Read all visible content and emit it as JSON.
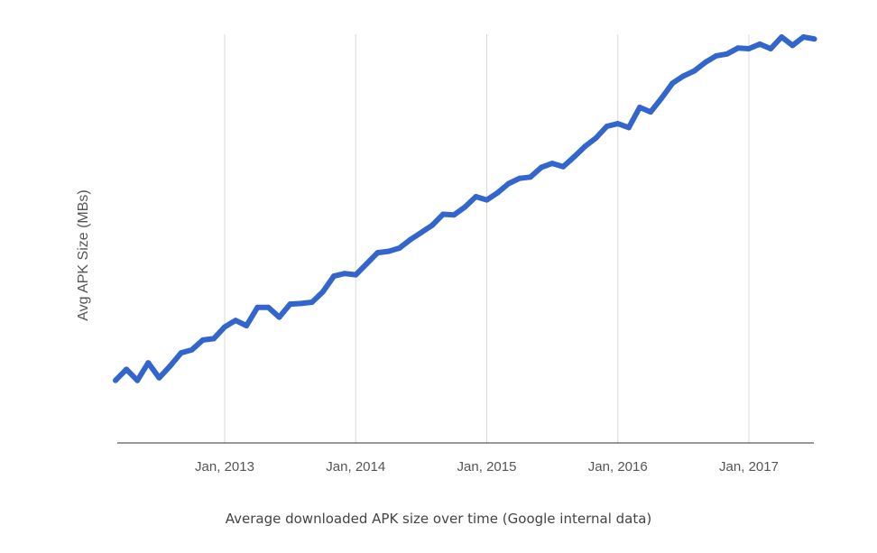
{
  "caption": "Average downloaded APK size over time (Google internal data)",
  "chart_data": {
    "type": "line",
    "title": "",
    "xlabel": "",
    "ylabel": "Avg APK Size (MBs)",
    "x_ticks": [
      "Jan, 2013",
      "Jan, 2014",
      "Jan, 2015",
      "Jan, 2016",
      "Jan, 2017"
    ],
    "grid": {
      "vertical": true,
      "horizontal": false
    },
    "y_tick_labels_shown": false,
    "line_color": "#3366cc",
    "series": [
      {
        "x": [
          "2012-03",
          "2012-04",
          "2012-05",
          "2012-06",
          "2012-07",
          "2012-08",
          "2012-09",
          "2012-10",
          "2012-11",
          "2012-12",
          "2013-01",
          "2013-02",
          "2013-03",
          "2013-04",
          "2013-05",
          "2013-06",
          "2013-07",
          "2013-08",
          "2013-09",
          "2013-10",
          "2013-11",
          "2013-12",
          "2014-01",
          "2014-02",
          "2014-03",
          "2014-04",
          "2014-05",
          "2014-06",
          "2014-07",
          "2014-08",
          "2014-09",
          "2014-10",
          "2014-11",
          "2014-12",
          "2015-01",
          "2015-02",
          "2015-03",
          "2015-04",
          "2015-05",
          "2015-06",
          "2015-07",
          "2015-08",
          "2015-09",
          "2015-10",
          "2015-11",
          "2015-12",
          "2016-01",
          "2016-02",
          "2016-03",
          "2016-04",
          "2016-05",
          "2016-06",
          "2016-07",
          "2016-08",
          "2016-09",
          "2016-10",
          "2016-11",
          "2016-12",
          "2017-01",
          "2017-02",
          "2017-03",
          "2017-04",
          "2017-05",
          "2017-06",
          "2017-07"
        ],
        "values": [
          0.8,
          2.5,
          0.8,
          3.5,
          1.2,
          3.0,
          5.0,
          5.5,
          7.0,
          7.2,
          9.0,
          10.0,
          9.2,
          12.0,
          12.0,
          10.5,
          12.5,
          12.6,
          12.8,
          14.4,
          16.8,
          17.2,
          17.0,
          18.7,
          20.4,
          20.6,
          21.1,
          22.4,
          23.5,
          24.6,
          26.3,
          26.2,
          27.4,
          29.0,
          28.5,
          29.6,
          31.0,
          31.8,
          32.0,
          33.5,
          34.1,
          33.6,
          35.1,
          36.7,
          38.0,
          39.8,
          40.2,
          39.6,
          42.7,
          42.0,
          44.1,
          46.4,
          47.5,
          48.3,
          49.6,
          50.6,
          50.9,
          51.8,
          51.7,
          52.4,
          51.7,
          53.5,
          52.2,
          53.5,
          53.2
        ]
      }
    ]
  }
}
